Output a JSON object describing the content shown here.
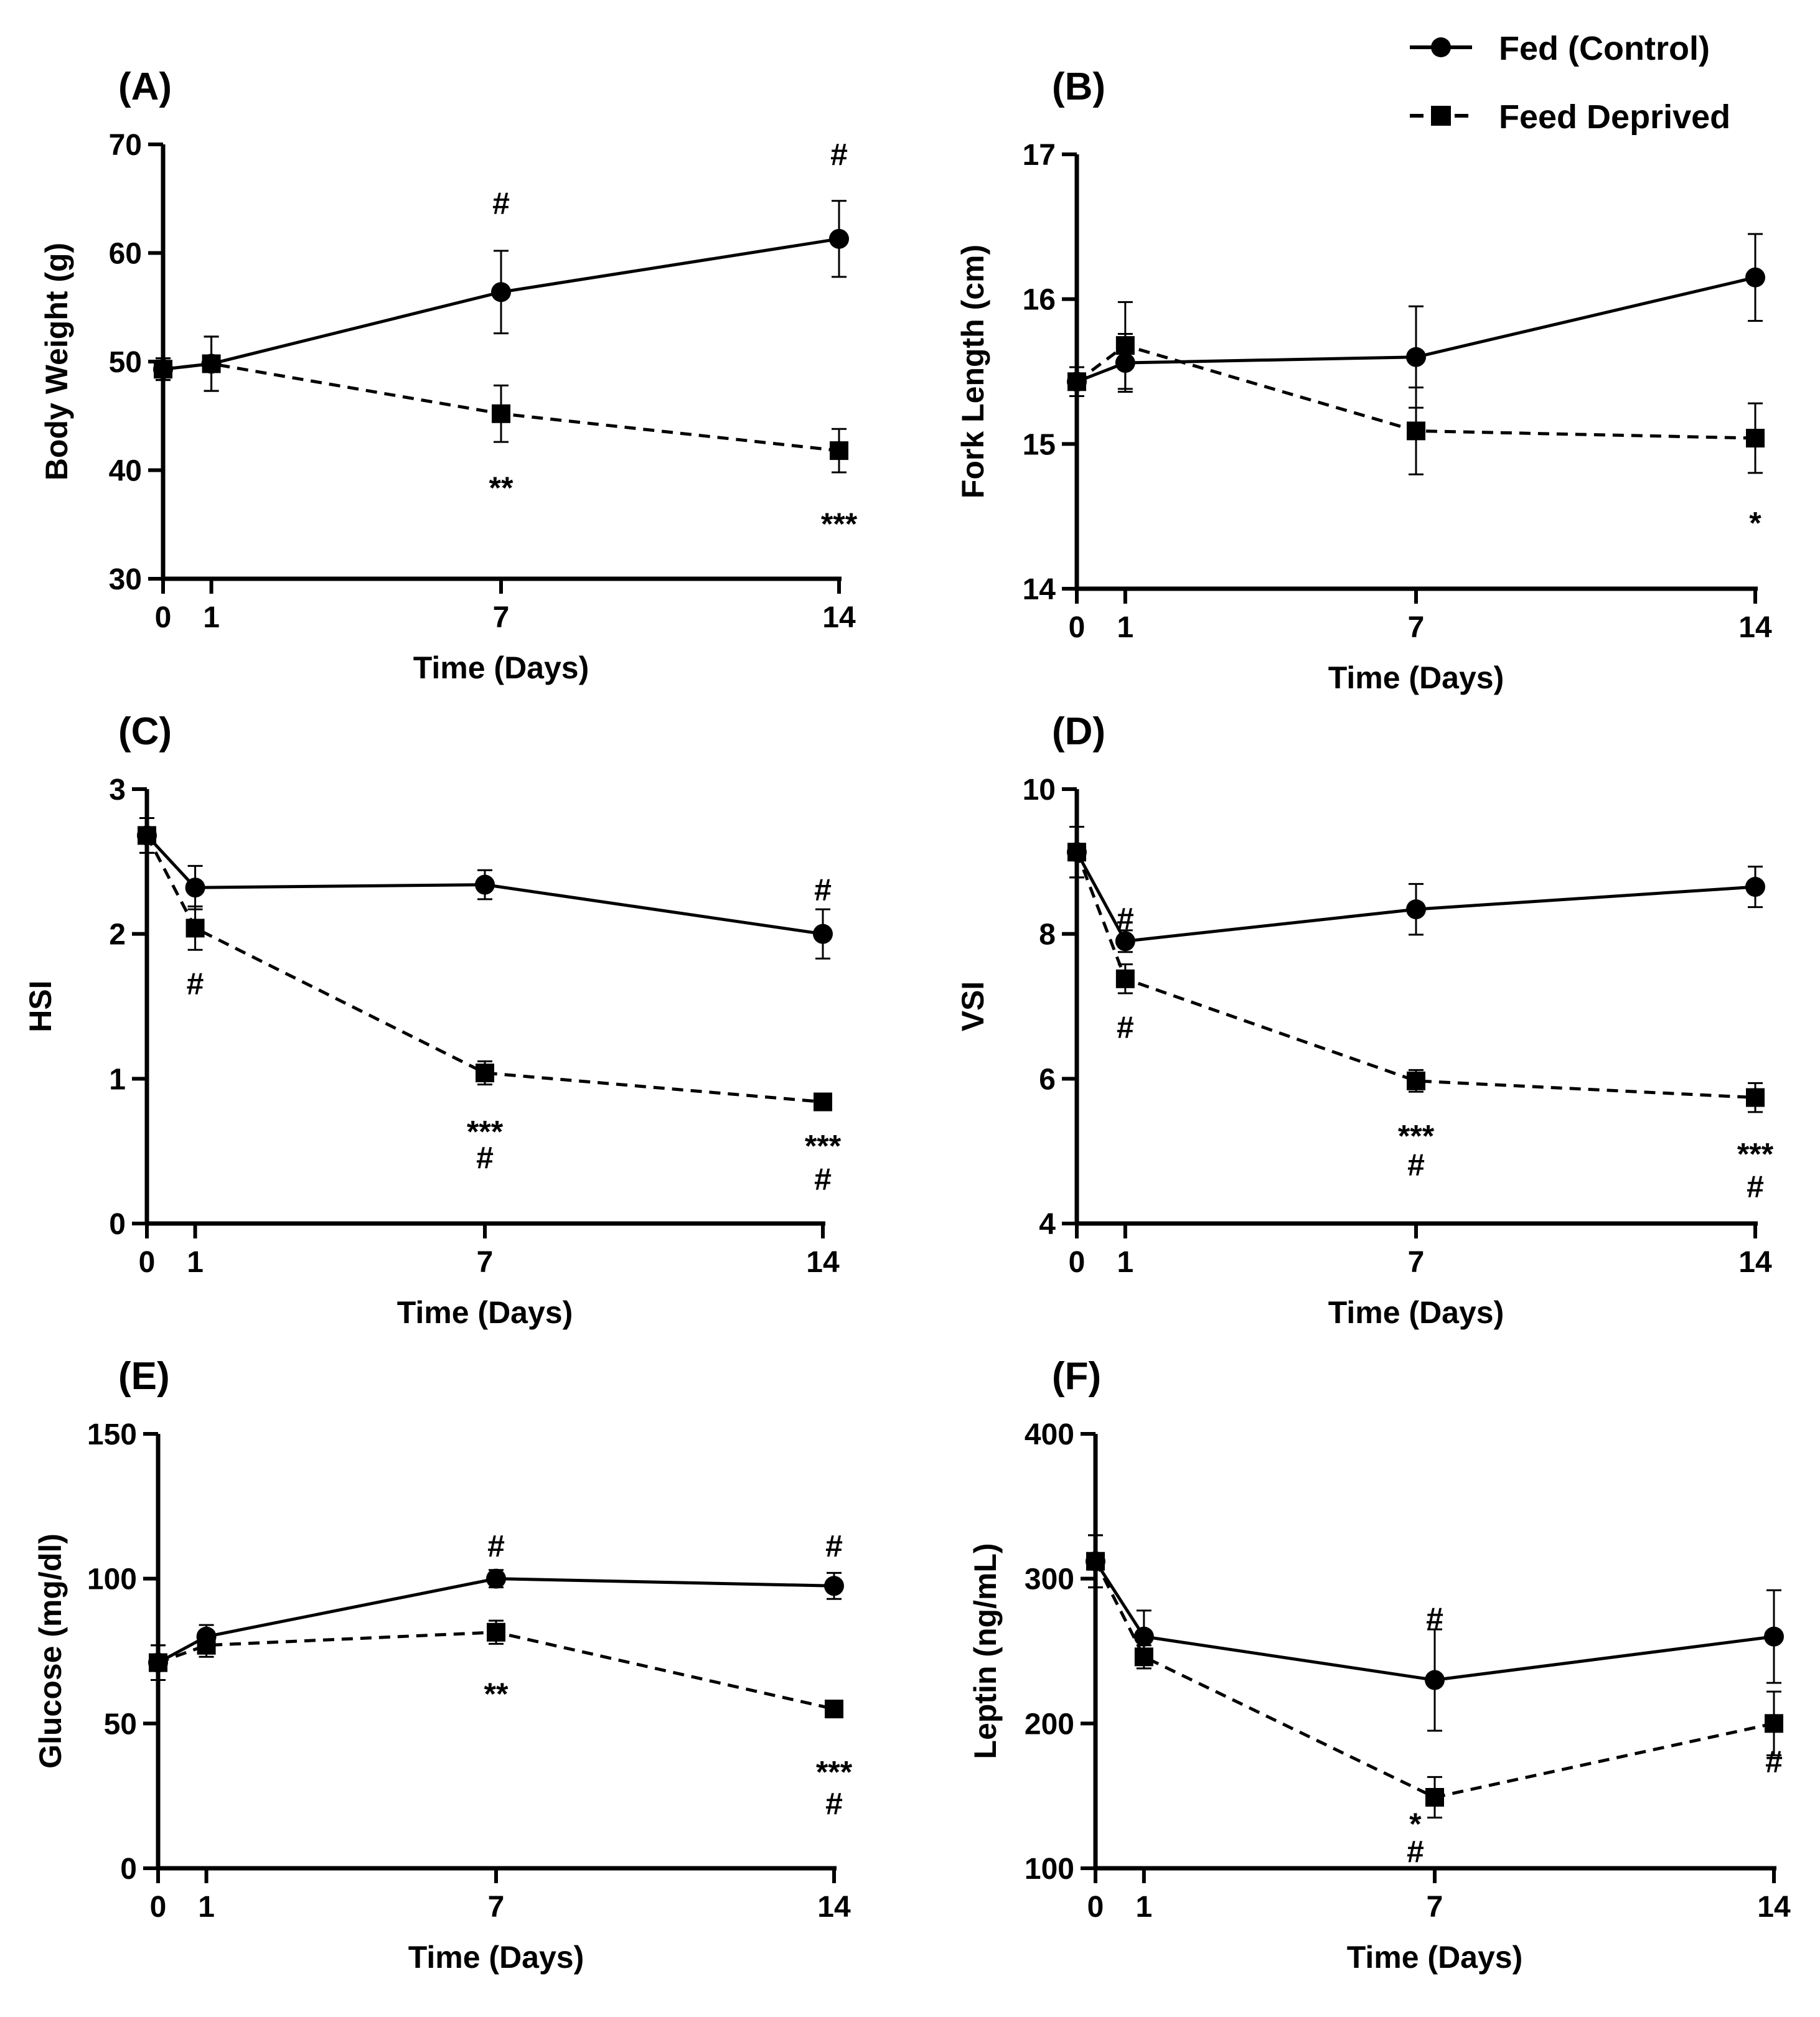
{
  "legend": {
    "fed": "Fed (Control)",
    "deprived": "Feed Deprived"
  },
  "colors": {
    "ink": "#000000",
    "background": "#ffffff"
  },
  "chart_data": [
    {
      "id": "A",
      "panel_label": "(A)",
      "type": "line",
      "xlabel": "Time (Days)",
      "ylabel": "Body Weight (g)",
      "x": [
        0,
        1,
        7,
        14
      ],
      "xticks": [
        "0",
        "1",
        "7",
        "14"
      ],
      "ylim": [
        30,
        70
      ],
      "yticks": [
        30,
        40,
        50,
        60,
        70
      ],
      "series": [
        {
          "name": "Fed (Control)",
          "values": [
            49.3,
            49.8,
            56.4,
            61.3
          ],
          "errors": [
            1.0,
            2.5,
            3.8,
            3.5
          ]
        },
        {
          "name": "Feed Deprived",
          "values": [
            49.3,
            49.8,
            45.2,
            41.8
          ],
          "errors": [
            1.0,
            2.5,
            2.6,
            2.0
          ]
        }
      ],
      "annotations": [
        {
          "text": "#",
          "x": 7,
          "y": 64.5
        },
        {
          "text": "#",
          "x": 14,
          "y": 69.0
        },
        {
          "text": "**",
          "x": 7,
          "y": 38.3
        },
        {
          "text": "***",
          "x": 14,
          "y": 35.0
        }
      ]
    },
    {
      "id": "B",
      "panel_label": "(B)",
      "type": "line",
      "xlabel": "Time (Days)",
      "ylabel": "Fork Length (cm)",
      "x": [
        0,
        1,
        7,
        14
      ],
      "xticks": [
        "0",
        "1",
        "7",
        "14"
      ],
      "ylim": [
        14,
        17
      ],
      "yticks": [
        14,
        15,
        16,
        17
      ],
      "series": [
        {
          "name": "Fed (Control)",
          "values": [
            15.43,
            15.56,
            15.6,
            16.15
          ],
          "errors": [
            0.1,
            0.2,
            0.35,
            0.3
          ]
        },
        {
          "name": "Feed Deprived",
          "values": [
            15.43,
            15.68,
            15.09,
            15.04
          ],
          "errors": [
            0.1,
            0.3,
            0.3,
            0.24
          ]
        }
      ],
      "annotations": [
        {
          "text": "*",
          "x": 14,
          "y": 14.45
        }
      ]
    },
    {
      "id": "C",
      "panel_label": "(C)",
      "type": "line",
      "xlabel": "Time (Days)",
      "ylabel": "HSI",
      "x": [
        0,
        1,
        7,
        14
      ],
      "xticks": [
        "0",
        "1",
        "7",
        "14"
      ],
      "ylim": [
        0,
        3
      ],
      "yticks": [
        0,
        1,
        2,
        3
      ],
      "series": [
        {
          "name": "Fed (Control)",
          "values": [
            2.68,
            2.32,
            2.34,
            2.0
          ],
          "errors": [
            0.12,
            0.15,
            0.1,
            0.17
          ]
        },
        {
          "name": "Feed Deprived",
          "values": [
            2.68,
            2.04,
            1.04,
            0.84
          ],
          "errors": [
            0.12,
            0.15,
            0.08,
            0.03
          ]
        }
      ],
      "annotations": [
        {
          "text": "#",
          "x": 1,
          "y": 1.65
        },
        {
          "text": "#",
          "x": 14,
          "y": 2.3
        },
        {
          "text": "***",
          "x": 7,
          "y": 0.63
        },
        {
          "text": "#",
          "x": 7,
          "y": 0.45
        },
        {
          "text": "***",
          "x": 14,
          "y": 0.53
        },
        {
          "text": "#",
          "x": 14,
          "y": 0.3
        }
      ]
    },
    {
      "id": "D",
      "panel_label": "(D)",
      "type": "line",
      "xlabel": "Time (Days)",
      "ylabel": "VSI",
      "x": [
        0,
        1,
        7,
        14
      ],
      "xticks": [
        "0",
        "1",
        "7",
        "14"
      ],
      "ylim": [
        4,
        10
      ],
      "yticks": [
        4,
        6,
        8,
        10
      ],
      "series": [
        {
          "name": "Fed (Control)",
          "values": [
            9.13,
            7.9,
            8.34,
            8.65
          ],
          "errors": [
            0.35,
            0.15,
            0.35,
            0.28
          ]
        },
        {
          "name": "Feed Deprived",
          "values": [
            9.13,
            7.38,
            5.97,
            5.74
          ],
          "errors": [
            0.35,
            0.2,
            0.15,
            0.2
          ]
        }
      ],
      "annotations": [
        {
          "text": "#",
          "x": 1,
          "y": 8.2
        },
        {
          "text": "#",
          "x": 1,
          "y": 6.7
        },
        {
          "text": "***",
          "x": 7,
          "y": 5.2
        },
        {
          "text": "#",
          "x": 7,
          "y": 4.8
        },
        {
          "text": "***",
          "x": 14,
          "y": 4.95
        },
        {
          "text": "#",
          "x": 14,
          "y": 4.5
        }
      ]
    },
    {
      "id": "E",
      "panel_label": "(E)",
      "type": "line",
      "xlabel": "Time (Days)",
      "ylabel": "Glucose (mg/dl)",
      "x": [
        0,
        1,
        7,
        14
      ],
      "xticks": [
        "0",
        "1",
        "7",
        "14"
      ],
      "ylim": [
        0,
        150
      ],
      "yticks": [
        0,
        50,
        100,
        150
      ],
      "series": [
        {
          "name": "Fed (Control)",
          "values": [
            71,
            80,
            100,
            97.5
          ],
          "errors": [
            6,
            4,
            3,
            4.5
          ]
        },
        {
          "name": "Feed Deprived",
          "values": [
            71,
            77,
            81.5,
            55
          ],
          "errors": [
            6,
            4,
            4,
            2
          ]
        }
      ],
      "annotations": [
        {
          "text": "#",
          "x": 7,
          "y": 111
        },
        {
          "text": "#",
          "x": 14,
          "y": 111
        },
        {
          "text": "**",
          "x": 7,
          "y": 60
        },
        {
          "text": "***",
          "x": 14,
          "y": 33
        },
        {
          "text": "#",
          "x": 14,
          "y": 22
        }
      ]
    },
    {
      "id": "F",
      "panel_label": "(F)",
      "type": "line",
      "xlabel": "Time (Days)",
      "ylabel": "Leptin (ng/mL)",
      "x": [
        0,
        1,
        7,
        14
      ],
      "xticks": [
        "0",
        "1",
        "7",
        "14"
      ],
      "ylim": [
        100,
        400
      ],
      "yticks": [
        100,
        200,
        300,
        400
      ],
      "series": [
        {
          "name": "Fed (Control)",
          "values": [
            312,
            260,
            230,
            260
          ],
          "errors": [
            18,
            18,
            35,
            32
          ]
        },
        {
          "name": "Feed Deprived",
          "values": [
            312,
            246,
            149,
            200
          ],
          "errors": [
            18,
            8,
            14,
            22
          ]
        }
      ],
      "annotations": [
        {
          "text": "#",
          "x": 7,
          "y": 272
        },
        {
          "text": "*",
          "x": 6.6,
          "y": 130
        },
        {
          "text": "#",
          "x": 6.6,
          "y": 111
        },
        {
          "text": "#",
          "x": 14,
          "y": 173
        }
      ]
    }
  ]
}
